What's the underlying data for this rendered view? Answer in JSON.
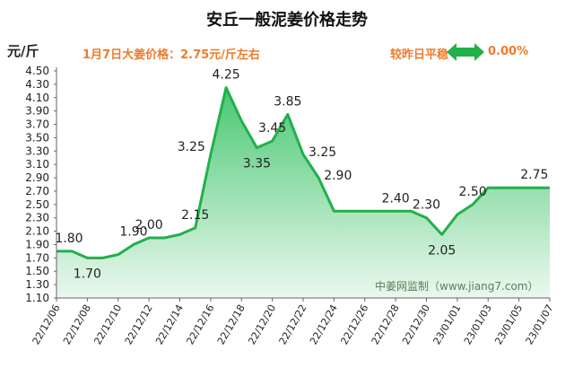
{
  "header": {
    "title": "安丘一般泥姜价格走势",
    "unit": "元/斤",
    "info": "1月7日大姜价格：2.75元/斤左右",
    "trend": "较昨日平稳",
    "change": "0.00%",
    "trend_icon": "double-arrow-icon",
    "accent_color": "#22b04b",
    "text_accent_color": "#f07a2a"
  },
  "watermark": "中姜网监制（www.jiang7.com）",
  "chart_data": {
    "type": "area",
    "title": "安丘一般泥姜价格走势",
    "ylabel": "元/斤",
    "ylim": [
      1.1,
      4.5
    ],
    "yticks": [
      "1.10",
      "1.30",
      "1.50",
      "1.70",
      "1.90",
      "2.10",
      "2.30",
      "2.50",
      "2.70",
      "2.90",
      "3.10",
      "3.30",
      "3.50",
      "3.70",
      "3.90",
      "4.10",
      "4.30",
      "4.50"
    ],
    "xticks": [
      "22/12/06",
      "22/12/08",
      "22/12/10",
      "22/12/12",
      "22/12/14",
      "22/12/16",
      "22/12/18",
      "22/12/20",
      "22/12/22",
      "22/12/24",
      "22/12/26",
      "22/12/28",
      "22/12/30",
      "23/01/01",
      "23/01/03",
      "23/01/05",
      "23/01/07"
    ],
    "x": [
      "22/12/06",
      "22/12/07",
      "22/12/08",
      "22/12/09",
      "22/12/10",
      "22/12/11",
      "22/12/12",
      "22/12/13",
      "22/12/14",
      "22/12/15",
      "22/12/16",
      "22/12/17",
      "22/12/18",
      "22/12/19",
      "22/12/20",
      "22/12/21",
      "22/12/22",
      "22/12/23",
      "22/12/24",
      "22/12/25",
      "22/12/26",
      "22/12/27",
      "22/12/28",
      "22/12/29",
      "22/12/30",
      "22/12/31",
      "23/01/01",
      "23/01/02",
      "23/01/03",
      "23/01/04",
      "23/01/05",
      "23/01/06",
      "23/01/07"
    ],
    "values": [
      1.8,
      1.8,
      1.7,
      1.7,
      1.75,
      1.9,
      2.0,
      2.0,
      2.05,
      2.15,
      3.25,
      4.25,
      3.75,
      3.35,
      3.45,
      3.85,
      3.25,
      2.9,
      2.4,
      2.4,
      2.4,
      2.4,
      2.4,
      2.4,
      2.3,
      2.05,
      2.35,
      2.5,
      2.75,
      2.75,
      2.75,
      2.75,
      2.75
    ],
    "labels": [
      {
        "i": 0,
        "text": "1.80",
        "pos": "above"
      },
      {
        "i": 2,
        "text": "1.70",
        "pos": "below"
      },
      {
        "i": 5,
        "text": "1.90",
        "pos": "above"
      },
      {
        "i": 6,
        "text": "2.00",
        "pos": "above"
      },
      {
        "i": 9,
        "text": "2.15",
        "pos": "above"
      },
      {
        "i": 10,
        "text": "3.25",
        "pos": "left"
      },
      {
        "i": 11,
        "text": "4.25",
        "pos": "above"
      },
      {
        "i": 13,
        "text": "3.35",
        "pos": "below"
      },
      {
        "i": 14,
        "text": "3.45",
        "pos": "above"
      },
      {
        "i": 15,
        "text": "3.85",
        "pos": "above"
      },
      {
        "i": 16,
        "text": "3.25",
        "pos": "right"
      },
      {
        "i": 17,
        "text": "2.90",
        "pos": "right"
      },
      {
        "i": 22,
        "text": "2.40",
        "pos": "above"
      },
      {
        "i": 24,
        "text": "2.30",
        "pos": "above"
      },
      {
        "i": 25,
        "text": "2.05",
        "pos": "below"
      },
      {
        "i": 27,
        "text": "2.50",
        "pos": "above"
      },
      {
        "i": 31,
        "text": "2.75",
        "pos": "above"
      }
    ],
    "grid": false,
    "line_color": "#22b04b",
    "fill_top_color": "#3ec46a",
    "fill_bottom_color": "#e8f7ec"
  }
}
